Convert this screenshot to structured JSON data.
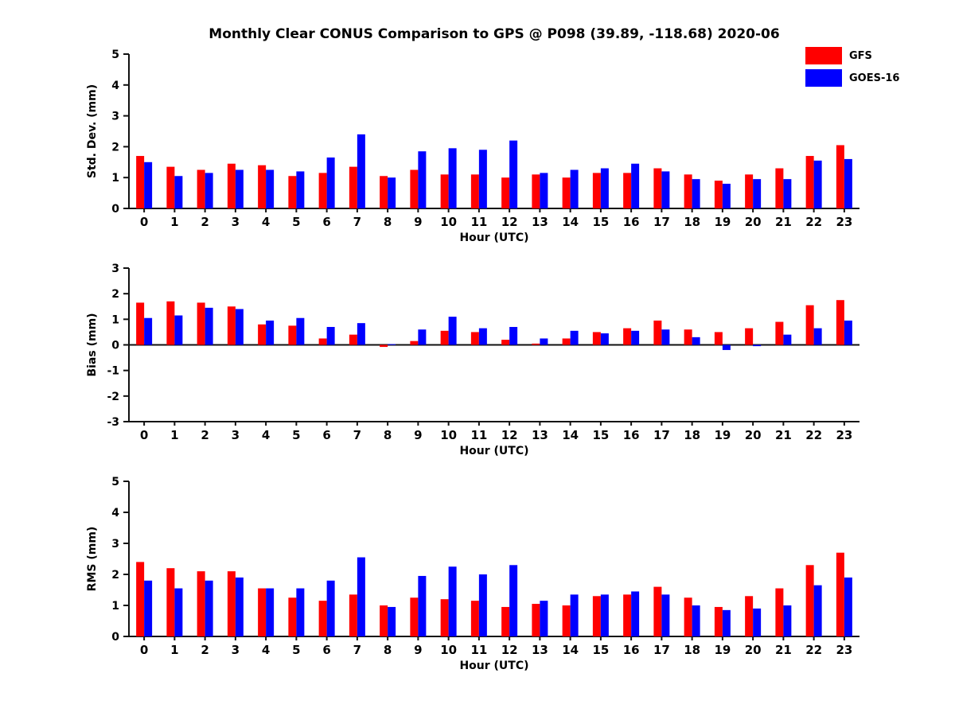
{
  "title": "Monthly Clear CONUS Comparison to GPS @ P098 (39.89, -118.68) 2020-06",
  "legend": {
    "items": [
      {
        "label": "GFS",
        "color": "#ff0000"
      },
      {
        "label": "GOES-16",
        "color": "#0000ff"
      }
    ]
  },
  "chart_data": [
    {
      "type": "bar",
      "title": "",
      "ylabel": "Std. Dev. (mm)",
      "xlabel": "Hour (UTC)",
      "ylim": [
        0,
        5
      ],
      "yticks": [
        0,
        1,
        2,
        3,
        4,
        5
      ],
      "grid": false,
      "legend_position": "top-right",
      "categories": [
        "0",
        "1",
        "2",
        "3",
        "4",
        "5",
        "6",
        "7",
        "8",
        "9",
        "10",
        "11",
        "12",
        "13",
        "14",
        "15",
        "16",
        "17",
        "18",
        "19",
        "20",
        "21",
        "22",
        "23"
      ],
      "series": [
        {
          "name": "GFS",
          "color": "#ff0000",
          "values": [
            1.7,
            1.35,
            1.25,
            1.45,
            1.4,
            1.05,
            1.15,
            1.35,
            1.05,
            1.25,
            1.1,
            1.1,
            1.0,
            1.1,
            1.0,
            1.15,
            1.15,
            1.3,
            1.1,
            0.9,
            1.1,
            1.3,
            1.7,
            2.05
          ]
        },
        {
          "name": "GOES-16",
          "color": "#0000ff",
          "values": [
            1.5,
            1.05,
            1.15,
            1.25,
            1.25,
            1.2,
            1.65,
            2.4,
            1.0,
            1.85,
            1.95,
            1.9,
            2.2,
            1.15,
            1.25,
            1.3,
            1.45,
            1.2,
            0.95,
            0.8,
            0.95,
            0.95,
            1.55,
            1.6
          ]
        }
      ]
    },
    {
      "type": "bar",
      "title": "",
      "ylabel": "Bias (mm)",
      "xlabel": "Hour (UTC)",
      "ylim": [
        -3,
        3
      ],
      "yticks": [
        -3,
        -2,
        -1,
        0,
        1,
        2,
        3
      ],
      "grid": false,
      "categories": [
        "0",
        "1",
        "2",
        "3",
        "4",
        "5",
        "6",
        "7",
        "8",
        "9",
        "10",
        "11",
        "12",
        "13",
        "14",
        "15",
        "16",
        "17",
        "18",
        "19",
        "20",
        "21",
        "22",
        "23"
      ],
      "series": [
        {
          "name": "GFS",
          "color": "#ff0000",
          "values": [
            1.65,
            1.7,
            1.65,
            1.5,
            0.8,
            0.75,
            0.25,
            0.4,
            -0.08,
            0.15,
            0.55,
            0.5,
            0.2,
            0.05,
            0.25,
            0.5,
            0.65,
            0.95,
            0.6,
            0.5,
            0.65,
            0.9,
            1.55,
            1.75
          ]
        },
        {
          "name": "GOES-16",
          "color": "#0000ff",
          "values": [
            1.05,
            1.15,
            1.45,
            1.4,
            0.95,
            1.05,
            0.7,
            0.85,
            0.03,
            0.6,
            1.1,
            0.65,
            0.7,
            0.25,
            0.55,
            0.45,
            0.55,
            0.6,
            0.3,
            -0.2,
            -0.05,
            0.4,
            0.65,
            0.95
          ]
        }
      ]
    },
    {
      "type": "bar",
      "title": "",
      "ylabel": "RMS (mm)",
      "xlabel": "Hour (UTC)",
      "ylim": [
        0,
        5
      ],
      "yticks": [
        0,
        1,
        2,
        3,
        4,
        5
      ],
      "grid": false,
      "categories": [
        "0",
        "1",
        "2",
        "3",
        "4",
        "5",
        "6",
        "7",
        "8",
        "9",
        "10",
        "11",
        "12",
        "13",
        "14",
        "15",
        "16",
        "17",
        "18",
        "19",
        "20",
        "21",
        "22",
        "23"
      ],
      "series": [
        {
          "name": "GFS",
          "color": "#ff0000",
          "values": [
            2.4,
            2.2,
            2.1,
            2.1,
            1.55,
            1.25,
            1.15,
            1.35,
            1.0,
            1.25,
            1.2,
            1.15,
            0.95,
            1.05,
            1.0,
            1.3,
            1.35,
            1.6,
            1.25,
            0.95,
            1.3,
            1.55,
            2.3,
            2.7
          ]
        },
        {
          "name": "GOES-16",
          "color": "#0000ff",
          "values": [
            1.8,
            1.55,
            1.8,
            1.9,
            1.55,
            1.55,
            1.8,
            2.55,
            0.95,
            1.95,
            2.25,
            2.0,
            2.3,
            1.15,
            1.35,
            1.35,
            1.45,
            1.35,
            1.0,
            0.85,
            0.9,
            1.0,
            1.65,
            1.9
          ]
        }
      ]
    }
  ]
}
